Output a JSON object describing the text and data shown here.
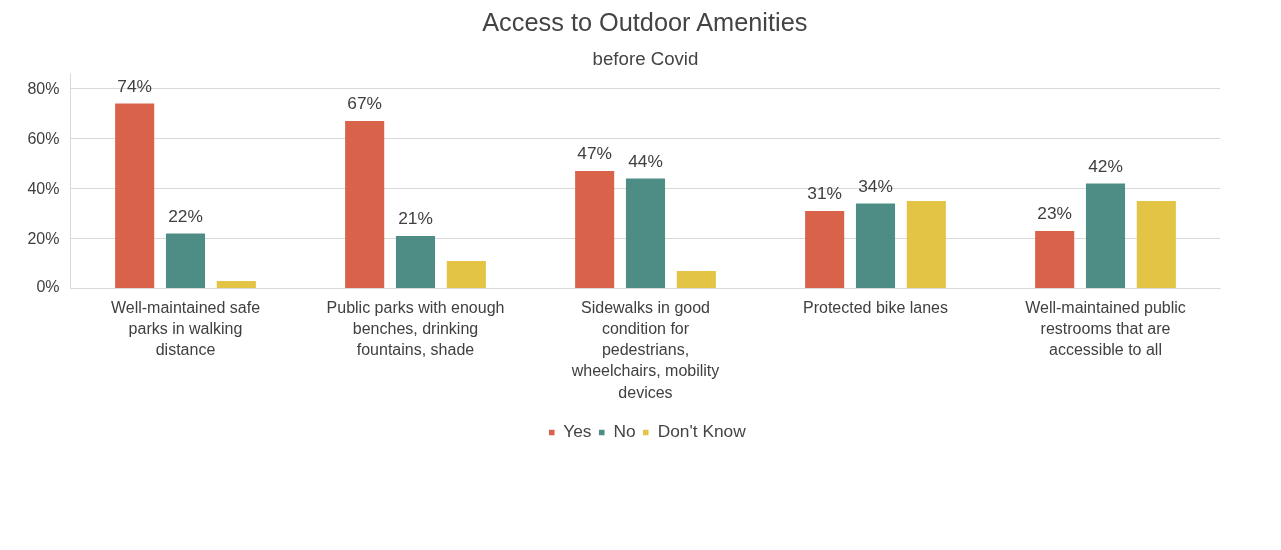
{
  "chart_data": {
    "type": "bar",
    "title": "Access to Outdoor Amenities",
    "subtitle": "before Covid",
    "categories": [
      "Well-maintained safe parks in walking distance",
      "Public parks with enough benches, drinking fountains, shade",
      "Sidewalks in good condition for pedestrians, wheelchairs, mobility devices",
      "Protected bike lanes",
      "Well-maintained public restrooms that are accessible to all"
    ],
    "series": [
      {
        "name": "Yes",
        "color": "#d9634a",
        "values": [
          74,
          67,
          47,
          31,
          23
        ],
        "value_labels": [
          "74%",
          "67%",
          "47%",
          "31%",
          "23%"
        ]
      },
      {
        "name": "No",
        "color": "#4e8d86",
        "values": [
          22,
          21,
          44,
          34,
          42
        ],
        "value_labels": [
          "22%",
          "21%",
          "44%",
          "34%",
          "42%"
        ]
      },
      {
        "name": "Don't Know",
        "color": "#e3c445",
        "values": [
          3,
          11,
          7,
          35,
          35
        ],
        "value_labels": [
          null,
          null,
          null,
          null,
          null
        ]
      }
    ],
    "ylim": [
      0,
      86
    ],
    "yticks": [
      {
        "value": 0,
        "label": "0%"
      },
      {
        "value": 20,
        "label": "20%"
      },
      {
        "value": 40,
        "label": "40%"
      },
      {
        "value": 60,
        "label": "60%"
      },
      {
        "value": 80,
        "label": "80%"
      }
    ],
    "grid": "y",
    "legend": "bottom"
  }
}
